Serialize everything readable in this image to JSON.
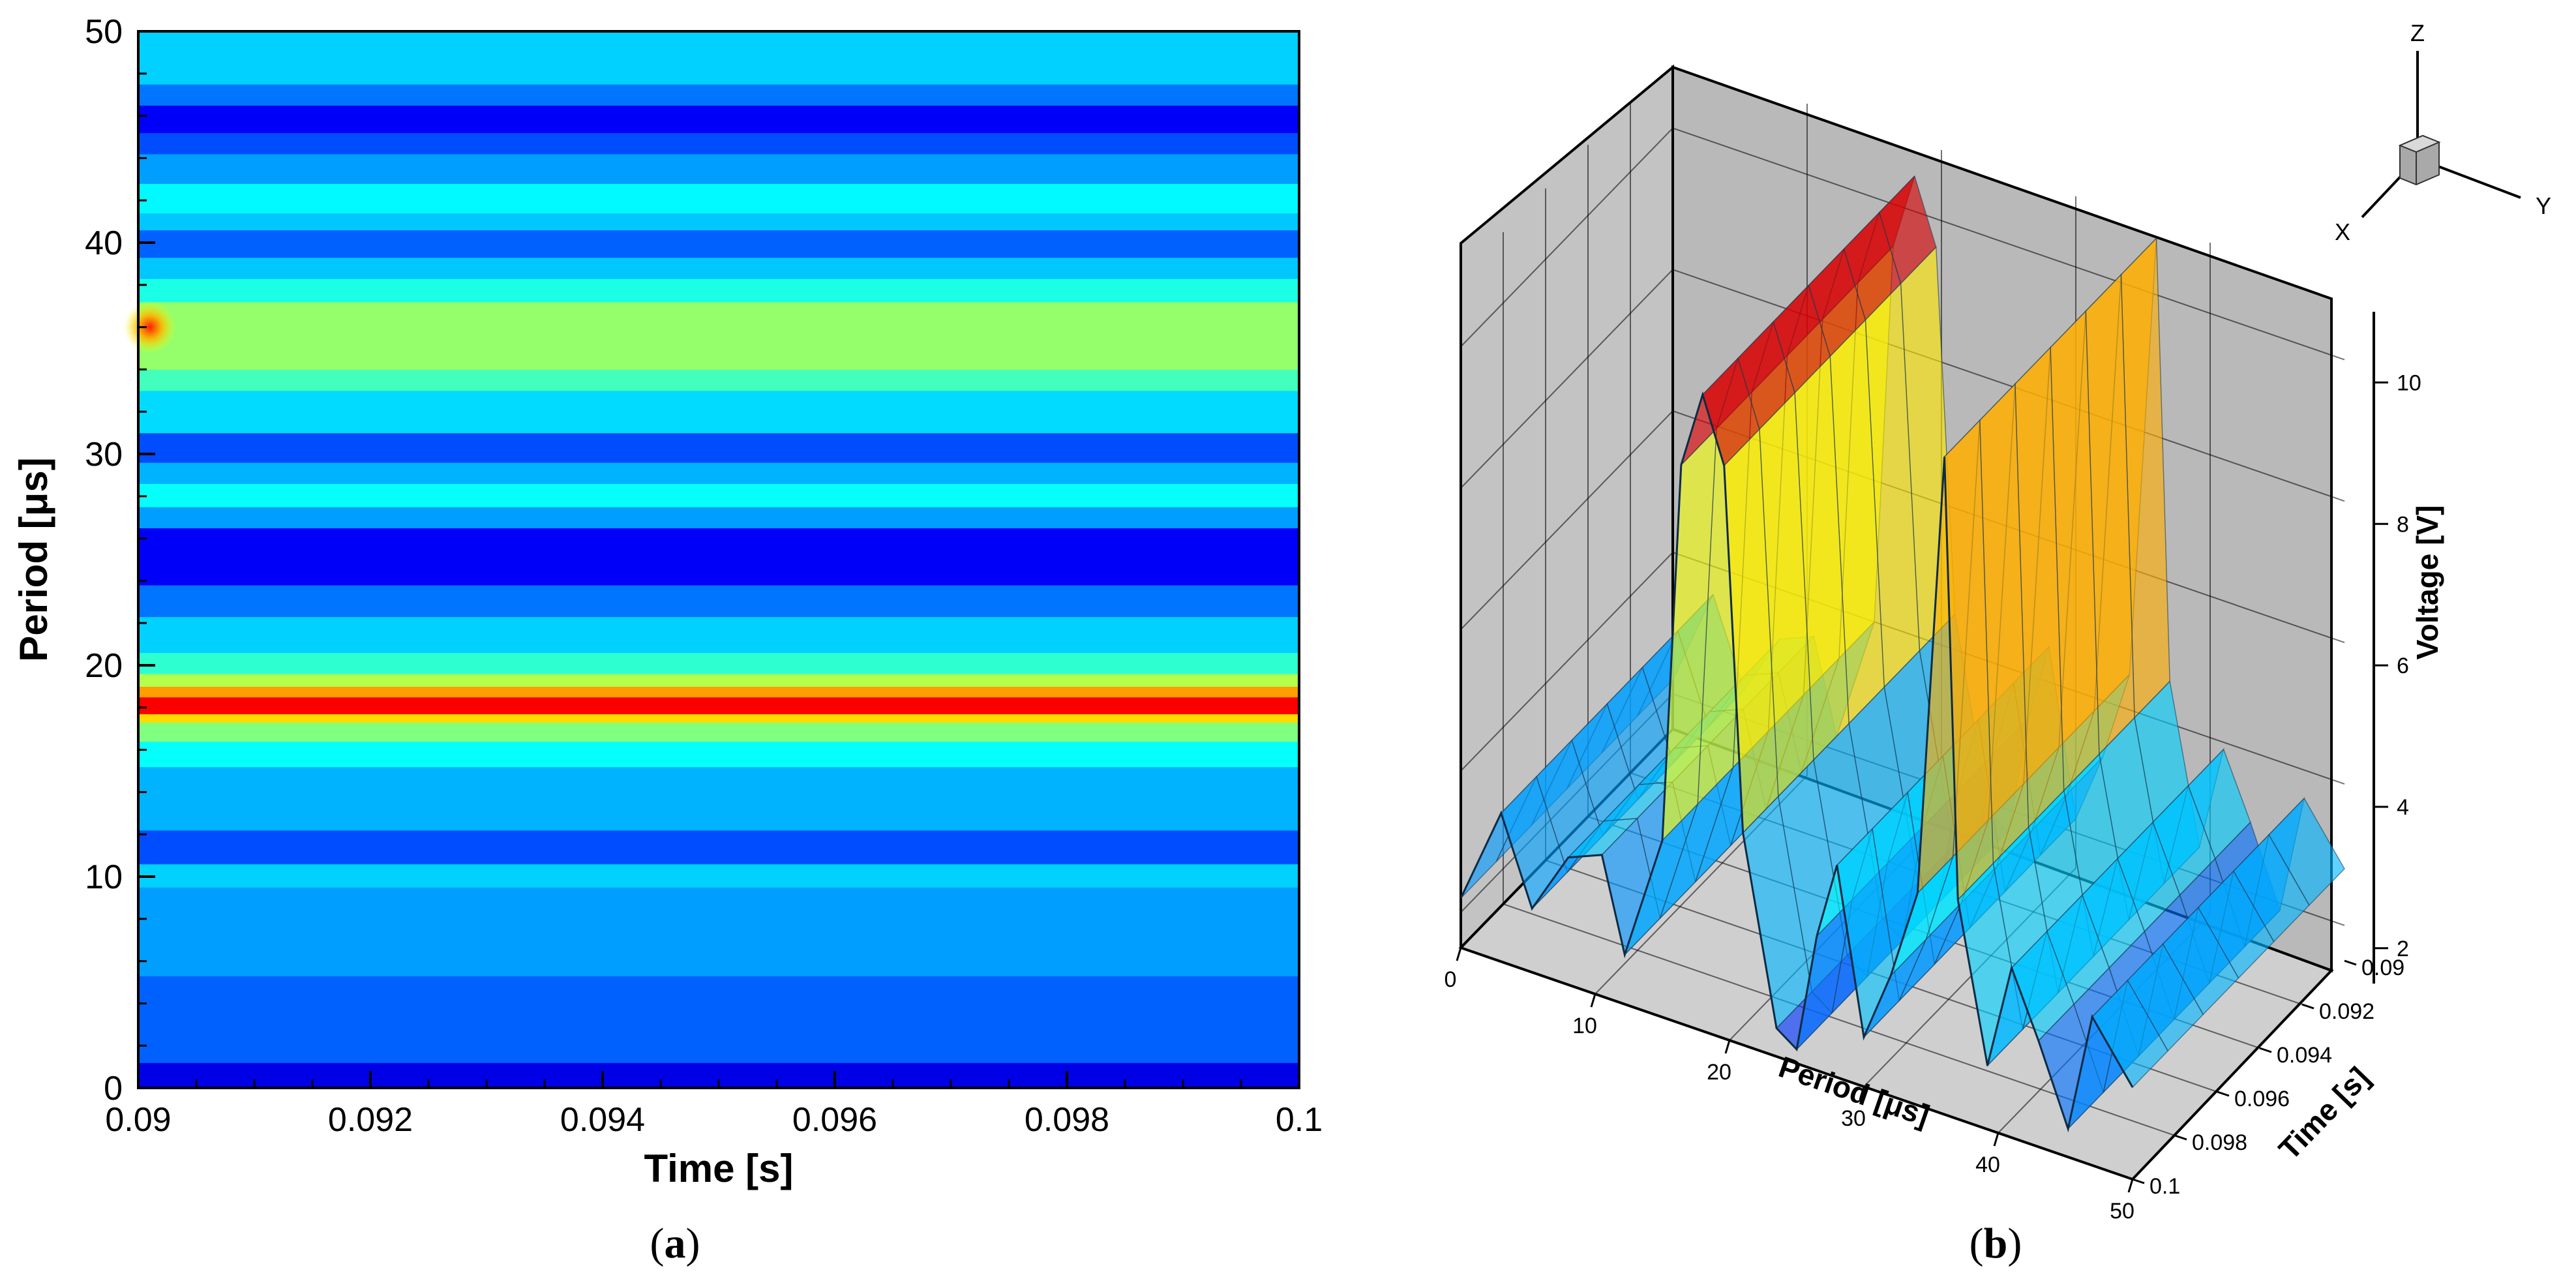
{
  "chart_data": [
    {
      "type": "heatmap",
      "panel": "a",
      "xlabel": "Time [s]",
      "ylabel": "Period [μs]",
      "xlim": [
        0.09,
        0.1
      ],
      "ylim": [
        0,
        50
      ],
      "xticks": [
        "0.09",
        "0.092",
        "0.094",
        "0.096",
        "0.098",
        "0.1"
      ],
      "yticks": [
        "0",
        "10",
        "20",
        "30",
        "40",
        "50"
      ],
      "colormap": "jet",
      "grid": false,
      "bands": [
        {
          "y0": 0.0,
          "y1": 1.2,
          "level": 0.1
        },
        {
          "y0": 1.2,
          "y1": 5.3,
          "level": 0.22
        },
        {
          "y0": 5.3,
          "y1": 9.5,
          "level": 0.28
        },
        {
          "y0": 9.5,
          "y1": 10.6,
          "level": 0.33
        },
        {
          "y0": 10.6,
          "y1": 12.2,
          "level": 0.2
        },
        {
          "y0": 12.2,
          "y1": 15.2,
          "level": 0.3
        },
        {
          "y0": 15.2,
          "y1": 16.4,
          "level": 0.38
        },
        {
          "y0": 16.4,
          "y1": 17.3,
          "level": 0.5
        },
        {
          "y0": 17.3,
          "y1": 17.7,
          "level": 0.66
        },
        {
          "y0": 17.7,
          "y1": 18.5,
          "level": 0.88
        },
        {
          "y0": 18.5,
          "y1": 19.0,
          "level": 0.72
        },
        {
          "y0": 19.0,
          "y1": 19.6,
          "level": 0.55
        },
        {
          "y0": 19.6,
          "y1": 20.6,
          "level": 0.42
        },
        {
          "y0": 20.6,
          "y1": 22.3,
          "level": 0.33
        },
        {
          "y0": 22.3,
          "y1": 23.8,
          "level": 0.24
        },
        {
          "y0": 23.8,
          "y1": 26.5,
          "level": 0.12
        },
        {
          "y0": 26.5,
          "y1": 27.5,
          "level": 0.28
        },
        {
          "y0": 27.5,
          "y1": 28.6,
          "level": 0.38
        },
        {
          "y0": 28.6,
          "y1": 29.6,
          "level": 0.3
        },
        {
          "y0": 29.6,
          "y1": 31.0,
          "level": 0.2
        },
        {
          "y0": 31.0,
          "y1": 33.0,
          "level": 0.34
        },
        {
          "y0": 33.0,
          "y1": 34.0,
          "level": 0.44
        },
        {
          "y0": 34.0,
          "y1": 37.2,
          "level": 0.52
        },
        {
          "y0": 37.2,
          "y1": 38.3,
          "level": 0.4
        },
        {
          "y0": 38.3,
          "y1": 39.3,
          "level": 0.32
        },
        {
          "y0": 39.3,
          "y1": 40.6,
          "level": 0.22
        },
        {
          "y0": 40.6,
          "y1": 41.4,
          "level": 0.32
        },
        {
          "y0": 41.4,
          "y1": 42.8,
          "level": 0.37
        },
        {
          "y0": 42.8,
          "y1": 44.2,
          "level": 0.28
        },
        {
          "y0": 44.2,
          "y1": 45.2,
          "level": 0.2
        },
        {
          "y0": 45.2,
          "y1": 46.5,
          "level": 0.12
        },
        {
          "y0": 46.5,
          "y1": 47.5,
          "level": 0.24
        },
        {
          "y0": 47.5,
          "y1": 50.0,
          "level": 0.33
        }
      ],
      "hotspot": {
        "x": 0.0901,
        "y": 36.0,
        "level": 0.82
      }
    },
    {
      "type": "surface3d",
      "panel": "b",
      "xlabel": "Period [μs]",
      "ylabel": "Time [s]",
      "zlabel": "Voltage [V]",
      "xticks": [
        "0",
        "10",
        "20",
        "30",
        "40",
        "50"
      ],
      "yticks": [
        "0.09",
        "0.092",
        "0.094",
        "0.096",
        "0.098",
        "0.1"
      ],
      "zticks": [
        "2",
        "4",
        "6",
        "8",
        "10"
      ],
      "zlim": [
        1.5,
        11
      ],
      "colormap": "jet",
      "grid": true,
      "profile": [
        {
          "p": 0,
          "v": 2.2
        },
        {
          "p": 3,
          "v": 3.6
        },
        {
          "p": 5.3,
          "v": 2.4
        },
        {
          "p": 8,
          "v": 3.3
        },
        {
          "p": 10.5,
          "v": 3.5
        },
        {
          "p": 12.2,
          "v": 2.2
        },
        {
          "p": 15,
          "v": 4.0
        },
        {
          "p": 16.4,
          "v": 9.4
        },
        {
          "p": 18,
          "v": 10.5
        },
        {
          "p": 19.6,
          "v": 9.6
        },
        {
          "p": 21,
          "v": 4.5
        },
        {
          "p": 23.5,
          "v": 1.9
        },
        {
          "p": 25,
          "v": 1.7
        },
        {
          "p": 26.5,
          "v": 3.4
        },
        {
          "p": 28,
          "v": 4.5
        },
        {
          "p": 30,
          "v": 2.2
        },
        {
          "p": 32,
          "v": 3.2
        },
        {
          "p": 34,
          "v": 4.5
        },
        {
          "p": 36,
          "v": 10.8
        },
        {
          "p": 37,
          "v": 4.6
        },
        {
          "p": 39.2,
          "v": 2.4
        },
        {
          "p": 41,
          "v": 3.9
        },
        {
          "p": 43,
          "v": 3.0
        },
        {
          "p": 45.2,
          "v": 1.9
        },
        {
          "p": 47,
          "v": 3.6
        },
        {
          "p": 50,
          "v": 2.8
        }
      ]
    }
  ],
  "panels": {
    "a": "a",
    "b": "b"
  },
  "triad": {
    "x": "X",
    "y": "Y",
    "z": "Z"
  }
}
